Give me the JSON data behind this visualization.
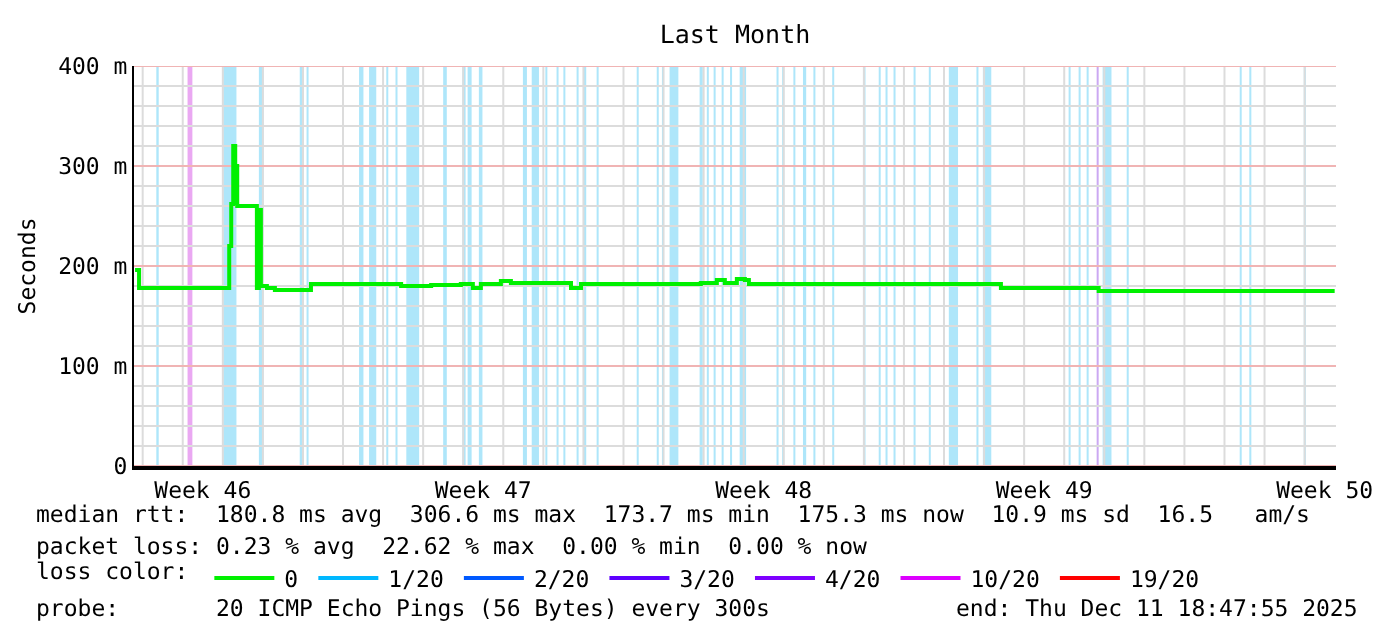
{
  "chart_data": {
    "type": "line",
    "title": "Last Month",
    "ylabel": "Seconds",
    "x": [
      "2025-11-11T19:26",
      "2025-11-11T21:50",
      "2025-11-14T01:26",
      "2025-11-14T03:50",
      "2025-11-14T05:02",
      "2025-11-14T06:14",
      "2025-11-14T07:26",
      "2025-11-14T08:38",
      "2025-11-14T20:24",
      "2025-11-14T21:36",
      "2025-11-14T22:48",
      "2025-11-15T02:24",
      "2025-11-15T07:12",
      "2025-11-16T01:12",
      "2025-11-16T04:48",
      "2025-11-18T04:48",
      "2025-11-18T10:48",
      "2025-11-19T04:48",
      "2025-11-19T22:34",
      "2025-11-20T05:46",
      "2025-11-20T10:34",
      "2025-11-20T22:34",
      "2025-11-21T04:34",
      "2025-11-22T14:10",
      "2025-11-22T16:34",
      "2025-11-22T22:34",
      "2025-11-24T19:55",
      "2025-11-25T22:19",
      "2025-11-26T07:55",
      "2025-11-26T12:43",
      "2025-11-26T19:55",
      "2025-11-27T00:43",
      "2025-11-27T03:07",
      "2025-11-28T10:19",
      "2025-12-03T08:53",
      "2025-12-03T10:05",
      "2025-12-05T19:26",
      "2025-12-05T20:38",
      "2025-12-11T18:00"
    ],
    "series": [
      {
        "name": "0",
        "color": "#00f000",
        "values": [
          196,
          178,
          178,
          220,
          262,
          320,
          300,
          260,
          178,
          256,
          180,
          178,
          176,
          176,
          182,
          182,
          180,
          181,
          182,
          178,
          182,
          185,
          183,
          183,
          178,
          182,
          182,
          183,
          186,
          183,
          187,
          186,
          182,
          182,
          182,
          178,
          178,
          175,
          175
        ]
      },
      {
        "name": "1/20",
        "color": "#00b8ff",
        "values": [
          null,
          null,
          null,
          null,
          null,
          null,
          null,
          null,
          null,
          null,
          null,
          null,
          null,
          null,
          null,
          null,
          null,
          null,
          null,
          null,
          null,
          null,
          null,
          null,
          null,
          null,
          null,
          null,
          null,
          null,
          null,
          null,
          null,
          null,
          null,
          null,
          null,
          null,
          null
        ]
      },
      {
        "name": "2/20",
        "color": "#0059ff",
        "values": [
          null,
          null,
          null,
          null,
          null,
          null,
          null,
          null,
          null,
          null,
          null,
          null,
          null,
          null,
          null,
          null,
          null,
          null,
          null,
          null,
          null,
          null,
          null,
          null,
          null,
          null,
          null,
          null,
          null,
          null,
          null,
          null,
          null,
          null,
          null,
          null,
          null,
          null,
          null
        ]
      },
      {
        "name": "3/20",
        "color": "#5e00ff",
        "values": [
          null,
          null,
          null,
          null,
          null,
          null,
          null,
          null,
          null,
          null,
          null,
          null,
          null,
          null,
          null,
          null,
          null,
          null,
          null,
          null,
          null,
          null,
          null,
          null,
          null,
          null,
          null,
          null,
          null,
          null,
          null,
          null,
          null,
          null,
          null,
          null,
          null,
          null,
          null
        ]
      },
      {
        "name": "4/20",
        "color": "#7e00ff",
        "values": [
          null,
          null,
          null,
          null,
          null,
          null,
          null,
          null,
          null,
          null,
          null,
          null,
          null,
          null,
          null,
          null,
          null,
          null,
          null,
          null,
          null,
          null,
          null,
          null,
          null,
          null,
          null,
          null,
          null,
          null,
          null,
          null,
          null,
          null,
          null,
          null,
          null,
          null,
          null
        ]
      },
      {
        "name": "10/20",
        "color": "#dd00ff",
        "values": [
          null,
          null,
          null,
          null,
          null,
          null,
          null,
          null,
          null,
          null,
          null,
          null,
          null,
          null,
          null,
          null,
          null,
          null,
          null,
          null,
          null,
          null,
          null,
          null,
          null,
          null,
          null,
          null,
          null,
          null,
          null,
          null,
          null,
          null,
          null,
          null,
          null,
          null,
          null
        ]
      },
      {
        "name": "19/20",
        "color": "#ff0000",
        "values": [
          null,
          null,
          null,
          null,
          null,
          null,
          null,
          null,
          null,
          null,
          null,
          null,
          null,
          null,
          null,
          null,
          null,
          null,
          null,
          null,
          null,
          null,
          null,
          null,
          null,
          null,
          null,
          null,
          null,
          null,
          null,
          null,
          null,
          null,
          null,
          null,
          null,
          null,
          null
        ]
      }
    ],
    "legend": "bottom",
    "legend_title": "loss color:",
    "xlim": [
      "2025-11-11T18:48",
      "2025-12-11T18:48"
    ],
    "xticks": [
      {
        "value": "2025-11-13T12:00",
        "label": "Week 46"
      },
      {
        "value": "2025-11-20T12:00",
        "label": "Week 47"
      },
      {
        "value": "2025-11-27T12:00",
        "label": "Week 48"
      },
      {
        "value": "2025-12-04T12:00",
        "label": "Week 49"
      },
      {
        "value": "2025-12-11T12:00",
        "label": "Week 50"
      },
      {
        "value": "2025-11-12",
        "label": null
      },
      {
        "value": "2025-11-13",
        "label": null
      },
      {
        "value": "2025-11-14",
        "label": null
      },
      {
        "value": "2025-11-15",
        "label": null
      },
      {
        "value": "2025-11-16",
        "label": null
      },
      {
        "value": "2025-11-17",
        "label": null
      },
      {
        "value": "2025-11-18",
        "label": null
      },
      {
        "value": "2025-11-19",
        "label": null
      },
      {
        "value": "2025-11-20",
        "label": null
      },
      {
        "value": "2025-11-21",
        "label": null
      },
      {
        "value": "2025-11-22",
        "label": null
      },
      {
        "value": "2025-11-23",
        "label": null
      },
      {
        "value": "2025-11-24",
        "label": null
      },
      {
        "value": "2025-11-25",
        "label": null
      },
      {
        "value": "2025-11-26",
        "label": null
      },
      {
        "value": "2025-11-27",
        "label": null
      },
      {
        "value": "2025-11-28",
        "label": null
      },
      {
        "value": "2025-11-29",
        "label": null
      },
      {
        "value": "2025-11-30",
        "label": null
      },
      {
        "value": "2025-12-01",
        "label": null
      },
      {
        "value": "2025-12-02",
        "label": null
      },
      {
        "value": "2025-12-03",
        "label": null
      },
      {
        "value": "2025-12-04",
        "label": null
      },
      {
        "value": "2025-12-05",
        "label": null
      },
      {
        "value": "2025-12-06",
        "label": null
      },
      {
        "value": "2025-12-07",
        "label": null
      },
      {
        "value": "2025-12-08",
        "label": null
      },
      {
        "value": "2025-12-09",
        "label": null
      },
      {
        "value": "2025-12-10",
        "label": null
      },
      {
        "value": "2025-12-11",
        "label": null
      }
    ],
    "ylim": [
      0,
      400
    ],
    "yticks": [
      0,
      {
        "value": 100,
        "label": "100 m"
      },
      {
        "value": 200,
        "label": "200 m"
      },
      {
        "value": 300,
        "label": "300 m"
      },
      {
        "value": 400,
        "label": "400 m"
      },
      {
        "value": 20,
        "label": null
      },
      {
        "value": 40,
        "label": null
      },
      {
        "value": 60,
        "label": null
      },
      {
        "value": 80,
        "label": null
      },
      {
        "value": 120,
        "label": null
      },
      {
        "value": 140,
        "label": null
      },
      {
        "value": 160,
        "label": null
      },
      {
        "value": 180,
        "label": null
      },
      {
        "value": 220,
        "label": null
      },
      {
        "value": 240,
        "label": null
      },
      {
        "value": 260,
        "label": null
      },
      {
        "value": 280,
        "label": null
      },
      {
        "value": 320,
        "label": null
      },
      {
        "value": 340,
        "label": null
      },
      {
        "value": 360,
        "label": null
      },
      {
        "value": 380,
        "label": null
      }
    ],
    "grid": true,
    "bands": [
      {
        "axis": "x",
        "from": "2025-11-12T08:10",
        "to": "2025-11-12T09:36",
        "color": "#aee6fa"
      },
      {
        "axis": "x",
        "from": "2025-11-13T02:53",
        "to": "2025-11-13T05:46",
        "color": "#eaa8f2"
      },
      {
        "axis": "x",
        "from": "2025-11-14T00:14",
        "to": "2025-11-14T08:10",
        "color": "#aee6fa"
      },
      {
        "axis": "x",
        "from": "2025-11-14T21:36",
        "to": "2025-11-15T00:29",
        "color": "#aee6fa"
      },
      {
        "axis": "x",
        "from": "2025-11-15T22:05",
        "to": "2025-11-16T00:29",
        "color": "#aee6fa"
      },
      {
        "axis": "x",
        "from": "2025-11-16T02:10",
        "to": "2025-11-16T03:22",
        "color": "#aee6fa"
      },
      {
        "axis": "x",
        "from": "2025-11-17T09:36",
        "to": "2025-11-17T12:14",
        "color": "#aee6fa"
      },
      {
        "axis": "x",
        "from": "2025-11-17T15:36",
        "to": "2025-11-17T19:55",
        "color": "#aee6fa"
      },
      {
        "axis": "x",
        "from": "2025-11-18T01:55",
        "to": "2025-11-18T03:07",
        "color": "#aee6fa"
      },
      {
        "axis": "x",
        "from": "2025-11-18T07:26",
        "to": "2025-11-18T08:38",
        "color": "#aee6fa"
      },
      {
        "axis": "x",
        "from": "2025-11-18T13:55",
        "to": "2025-11-18T21:36",
        "color": "#aee6fa"
      },
      {
        "axis": "x",
        "from": "2025-11-19T12:00",
        "to": "2025-11-19T14:10",
        "color": "#aee6fa"
      },
      {
        "axis": "x",
        "from": "2025-11-19T23:31",
        "to": "2025-11-20T01:26",
        "color": "#aee6fa"
      },
      {
        "axis": "x",
        "from": "2025-11-20T02:38",
        "to": "2025-11-20T05:02",
        "color": "#aee6fa"
      },
      {
        "axis": "x",
        "from": "2025-11-20T09:22",
        "to": "2025-11-20T11:31",
        "color": "#aee6fa"
      },
      {
        "axis": "x",
        "from": "2025-11-21T11:46",
        "to": "2025-11-21T14:10",
        "color": "#aee6fa"
      },
      {
        "axis": "x",
        "from": "2025-11-21T17:02",
        "to": "2025-11-21T21:22",
        "color": "#aee6fa"
      },
      {
        "axis": "x",
        "from": "2025-11-22T01:12",
        "to": "2025-11-22T02:24",
        "color": "#aee6fa"
      },
      {
        "axis": "x",
        "from": "2025-11-22T07:55",
        "to": "2025-11-22T09:07",
        "color": "#aee6fa"
      },
      {
        "axis": "x",
        "from": "2025-11-22T12:00",
        "to": "2025-11-22T13:12",
        "color": "#aee6fa"
      },
      {
        "axis": "x",
        "from": "2025-11-22T19:55",
        "to": "2025-11-22T21:07",
        "color": "#aee6fa"
      },
      {
        "axis": "x",
        "from": "2025-11-22T23:46",
        "to": "2025-11-23T01:41",
        "color": "#aee6fa"
      },
      {
        "axis": "x",
        "from": "2025-11-23T07:55",
        "to": "2025-11-23T09:07",
        "color": "#aee6fa"
      },
      {
        "axis": "x",
        "from": "2025-11-24T07:55",
        "to": "2025-11-24T09:07",
        "color": "#aee6fa"
      },
      {
        "axis": "x",
        "from": "2025-11-24T19:55",
        "to": "2025-11-24T21:07",
        "color": "#aee6fa"
      },
      {
        "axis": "x",
        "from": "2025-11-24T23:02",
        "to": "2025-11-25T00:14",
        "color": "#aee6fa"
      },
      {
        "axis": "x",
        "from": "2025-11-25T03:36",
        "to": "2025-11-25T08:53",
        "color": "#aee6fa"
      },
      {
        "axis": "x",
        "from": "2025-11-25T21:36",
        "to": "2025-11-25T23:31",
        "color": "#aee6fa"
      },
      {
        "axis": "x",
        "from": "2025-11-26T01:55",
        "to": "2025-11-26T03:07",
        "color": "#aee6fa"
      },
      {
        "axis": "x",
        "from": "2025-11-26T06:00",
        "to": "2025-11-26T07:12",
        "color": "#aee6fa"
      },
      {
        "axis": "x",
        "from": "2025-11-26T10:48",
        "to": "2025-11-26T12:00",
        "color": "#aee6fa"
      },
      {
        "axis": "x",
        "from": "2025-11-26T15:50",
        "to": "2025-11-26T17:02",
        "color": "#aee6fa"
      },
      {
        "axis": "x",
        "from": "2025-11-26T21:36",
        "to": "2025-11-27T01:26",
        "color": "#aee6fa"
      },
      {
        "axis": "x",
        "from": "2025-11-27T19:41",
        "to": "2025-11-27T20:53",
        "color": "#aee6fa"
      },
      {
        "axis": "x",
        "from": "2025-11-27T23:02",
        "to": "2025-11-28T00:14",
        "color": "#aee6fa"
      },
      {
        "axis": "x",
        "from": "2025-11-28T05:46",
        "to": "2025-11-28T06:58",
        "color": "#aee6fa"
      },
      {
        "axis": "x",
        "from": "2025-11-28T11:31",
        "to": "2025-11-28T13:26",
        "color": "#aee6fa"
      },
      {
        "axis": "x",
        "from": "2025-11-28T17:46",
        "to": "2025-11-28T18:58",
        "color": "#aee6fa"
      },
      {
        "axis": "x",
        "from": "2025-11-29T05:02",
        "to": "2025-11-29T06:14",
        "color": "#aee6fa"
      },
      {
        "axis": "x",
        "from": "2025-11-29T23:46",
        "to": "2025-11-30T00:58",
        "color": "#aee6fa"
      },
      {
        "axis": "x",
        "from": "2025-11-30T08:53",
        "to": "2025-11-30T10:05",
        "color": "#aee6fa"
      },
      {
        "axis": "x",
        "from": "2025-11-30T12:58",
        "to": "2025-11-30T14:10",
        "color": "#aee6fa"
      },
      {
        "axis": "x",
        "from": "2025-11-30T17:46",
        "to": "2025-11-30T18:58",
        "color": "#aee6fa"
      },
      {
        "axis": "x",
        "from": "2025-12-01T05:46",
        "to": "2025-12-01T06:58",
        "color": "#aee6fa"
      },
      {
        "axis": "x",
        "from": "2025-12-01T14:53",
        "to": "2025-12-01T16:05",
        "color": "#aee6fa"
      },
      {
        "axis": "x",
        "from": "2025-12-02T02:53",
        "to": "2025-12-02T08:24",
        "color": "#aee6fa"
      },
      {
        "axis": "x",
        "from": "2025-12-02T19:26",
        "to": "2025-12-02T20:38",
        "color": "#aee6fa"
      },
      {
        "axis": "x",
        "from": "2025-12-02T23:17",
        "to": "2025-12-03T04:19",
        "color": "#aee6fa"
      },
      {
        "axis": "x",
        "from": "2025-12-05T02:38",
        "to": "2025-12-05T03:50",
        "color": "#aee6fa"
      },
      {
        "axis": "x",
        "from": "2025-12-05T08:38",
        "to": "2025-12-05T09:50",
        "color": "#aee6fa"
      },
      {
        "axis": "x",
        "from": "2025-12-05T13:26",
        "to": "2025-12-05T14:38",
        "color": "#aee6fa"
      },
      {
        "axis": "x",
        "from": "2025-12-05T19:26",
        "to": "2025-12-05T20:38",
        "color": "#cba8f2"
      },
      {
        "axis": "x",
        "from": "2025-12-05T23:02",
        "to": "2025-12-06T04:19",
        "color": "#aee6fa"
      },
      {
        "axis": "x",
        "from": "2025-12-06T13:26",
        "to": "2025-12-06T14:38",
        "color": "#aee6fa"
      },
      {
        "axis": "x",
        "from": "2025-12-09T09:07",
        "to": "2025-12-09T10:19",
        "color": "#aee6fa"
      },
      {
        "axis": "x",
        "from": "2025-12-09T14:53",
        "to": "2025-12-09T16:05",
        "color": "#aee6fa"
      },
      {
        "axis": "x",
        "from": "2025-12-10T23:31",
        "to": "2025-12-11T00:43",
        "color": "#aee6fa"
      }
    ],
    "annotations": [
      "median rtt:  180.8 ms avg  306.6 ms max  173.7 ms min  175.3 ms now  10.9 ms sd  16.5   am/s",
      "packet loss: 0.23 % avg  22.62 % max  0.00 % min  0.00 % now",
      "probe:       20 ICMP Echo Pings (56 Bytes) every 300s",
      "end: Thu Dec 11 18:47:55 2025"
    ]
  }
}
